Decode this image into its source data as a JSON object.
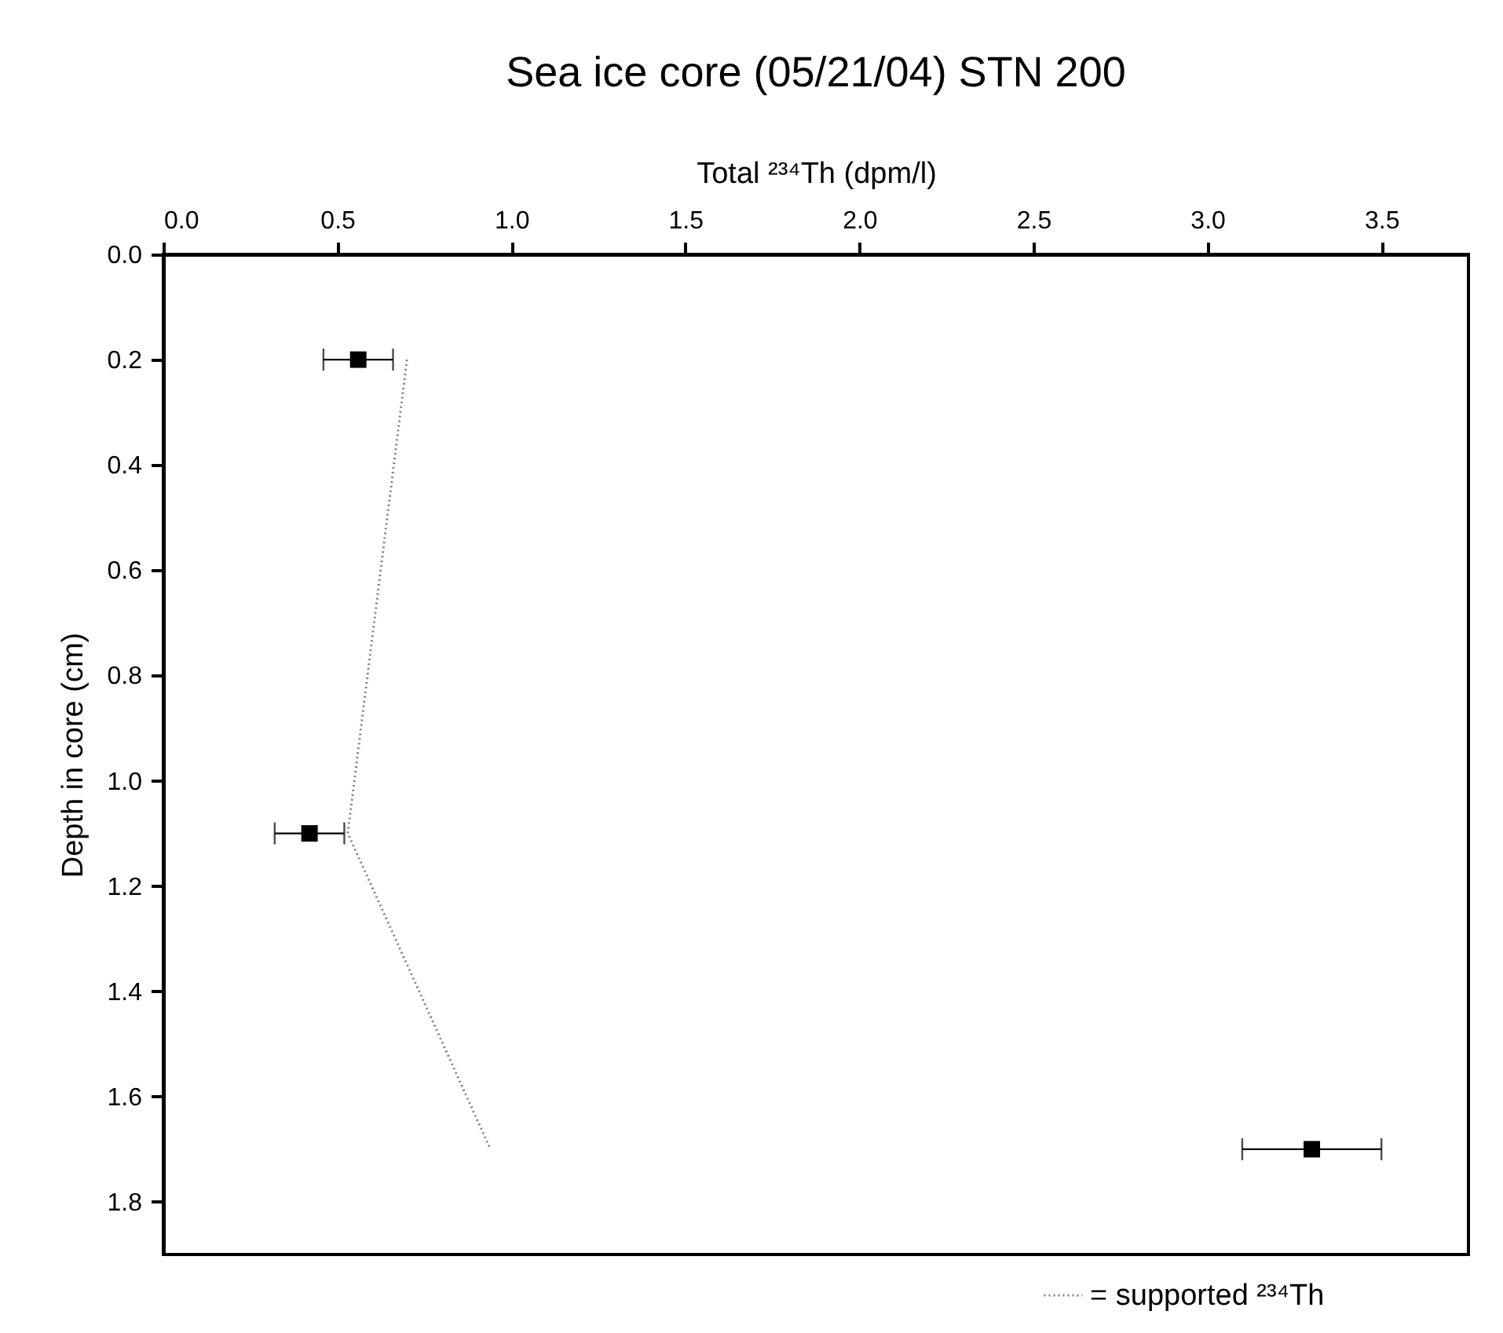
{
  "chart_data": {
    "type": "scatter",
    "title": "Sea ice core (05/21/04) STN 200",
    "xlabel": "Total ²³⁴Th (dpm/l)",
    "ylabel": "Depth in core (cm)",
    "xlim": [
      0,
      3.75
    ],
    "ylim": [
      1.9,
      0
    ],
    "xticks": [
      {
        "value": 0,
        "label": "0.0"
      },
      {
        "value": 0.5,
        "label": "0.5"
      },
      {
        "value": 1,
        "label": "1.0"
      },
      {
        "value": 1.5,
        "label": "1.5"
      },
      {
        "value": 2,
        "label": "2.0"
      },
      {
        "value": 2.5,
        "label": "2.5"
      },
      {
        "value": 3,
        "label": "3.0"
      },
      {
        "value": 3.5,
        "label": "3.5"
      }
    ],
    "yticks": [
      {
        "value": 0,
        "label": "0.0"
      },
      {
        "value": 0.2,
        "label": "0.2"
      },
      {
        "value": 0.4,
        "label": "0.4"
      },
      {
        "value": 0.6,
        "label": "0.6"
      },
      {
        "value": 0.8,
        "label": "0.8"
      },
      {
        "value": 1,
        "label": "1.0"
      },
      {
        "value": 1.2,
        "label": "1.2"
      },
      {
        "value": 1.4,
        "label": "1.4"
      },
      {
        "value": 1.6,
        "label": "1.6"
      },
      {
        "value": 1.8,
        "label": "1.8"
      }
    ],
    "grid": false,
    "legend": "bottom right",
    "marker": "square",
    "series": [
      {
        "color": "#000000",
        "x": [
          0.56,
          0.42,
          3.3
        ],
        "values": [
          0.2,
          1.1,
          1.7
        ],
        "xerrors": [
          [
            0.46,
            0.66
          ],
          [
            0.32,
            0.52
          ],
          [
            3.1,
            3.5
          ]
        ]
      },
      {
        "type": "line",
        "name": "= supported ²³⁴Th",
        "color": "#808080",
        "line_style": "dotted",
        "marker": "none",
        "x": [
          0.7,
          0.53,
          0.94
        ],
        "values": [
          0.2,
          1.1,
          1.7
        ]
      }
    ]
  }
}
